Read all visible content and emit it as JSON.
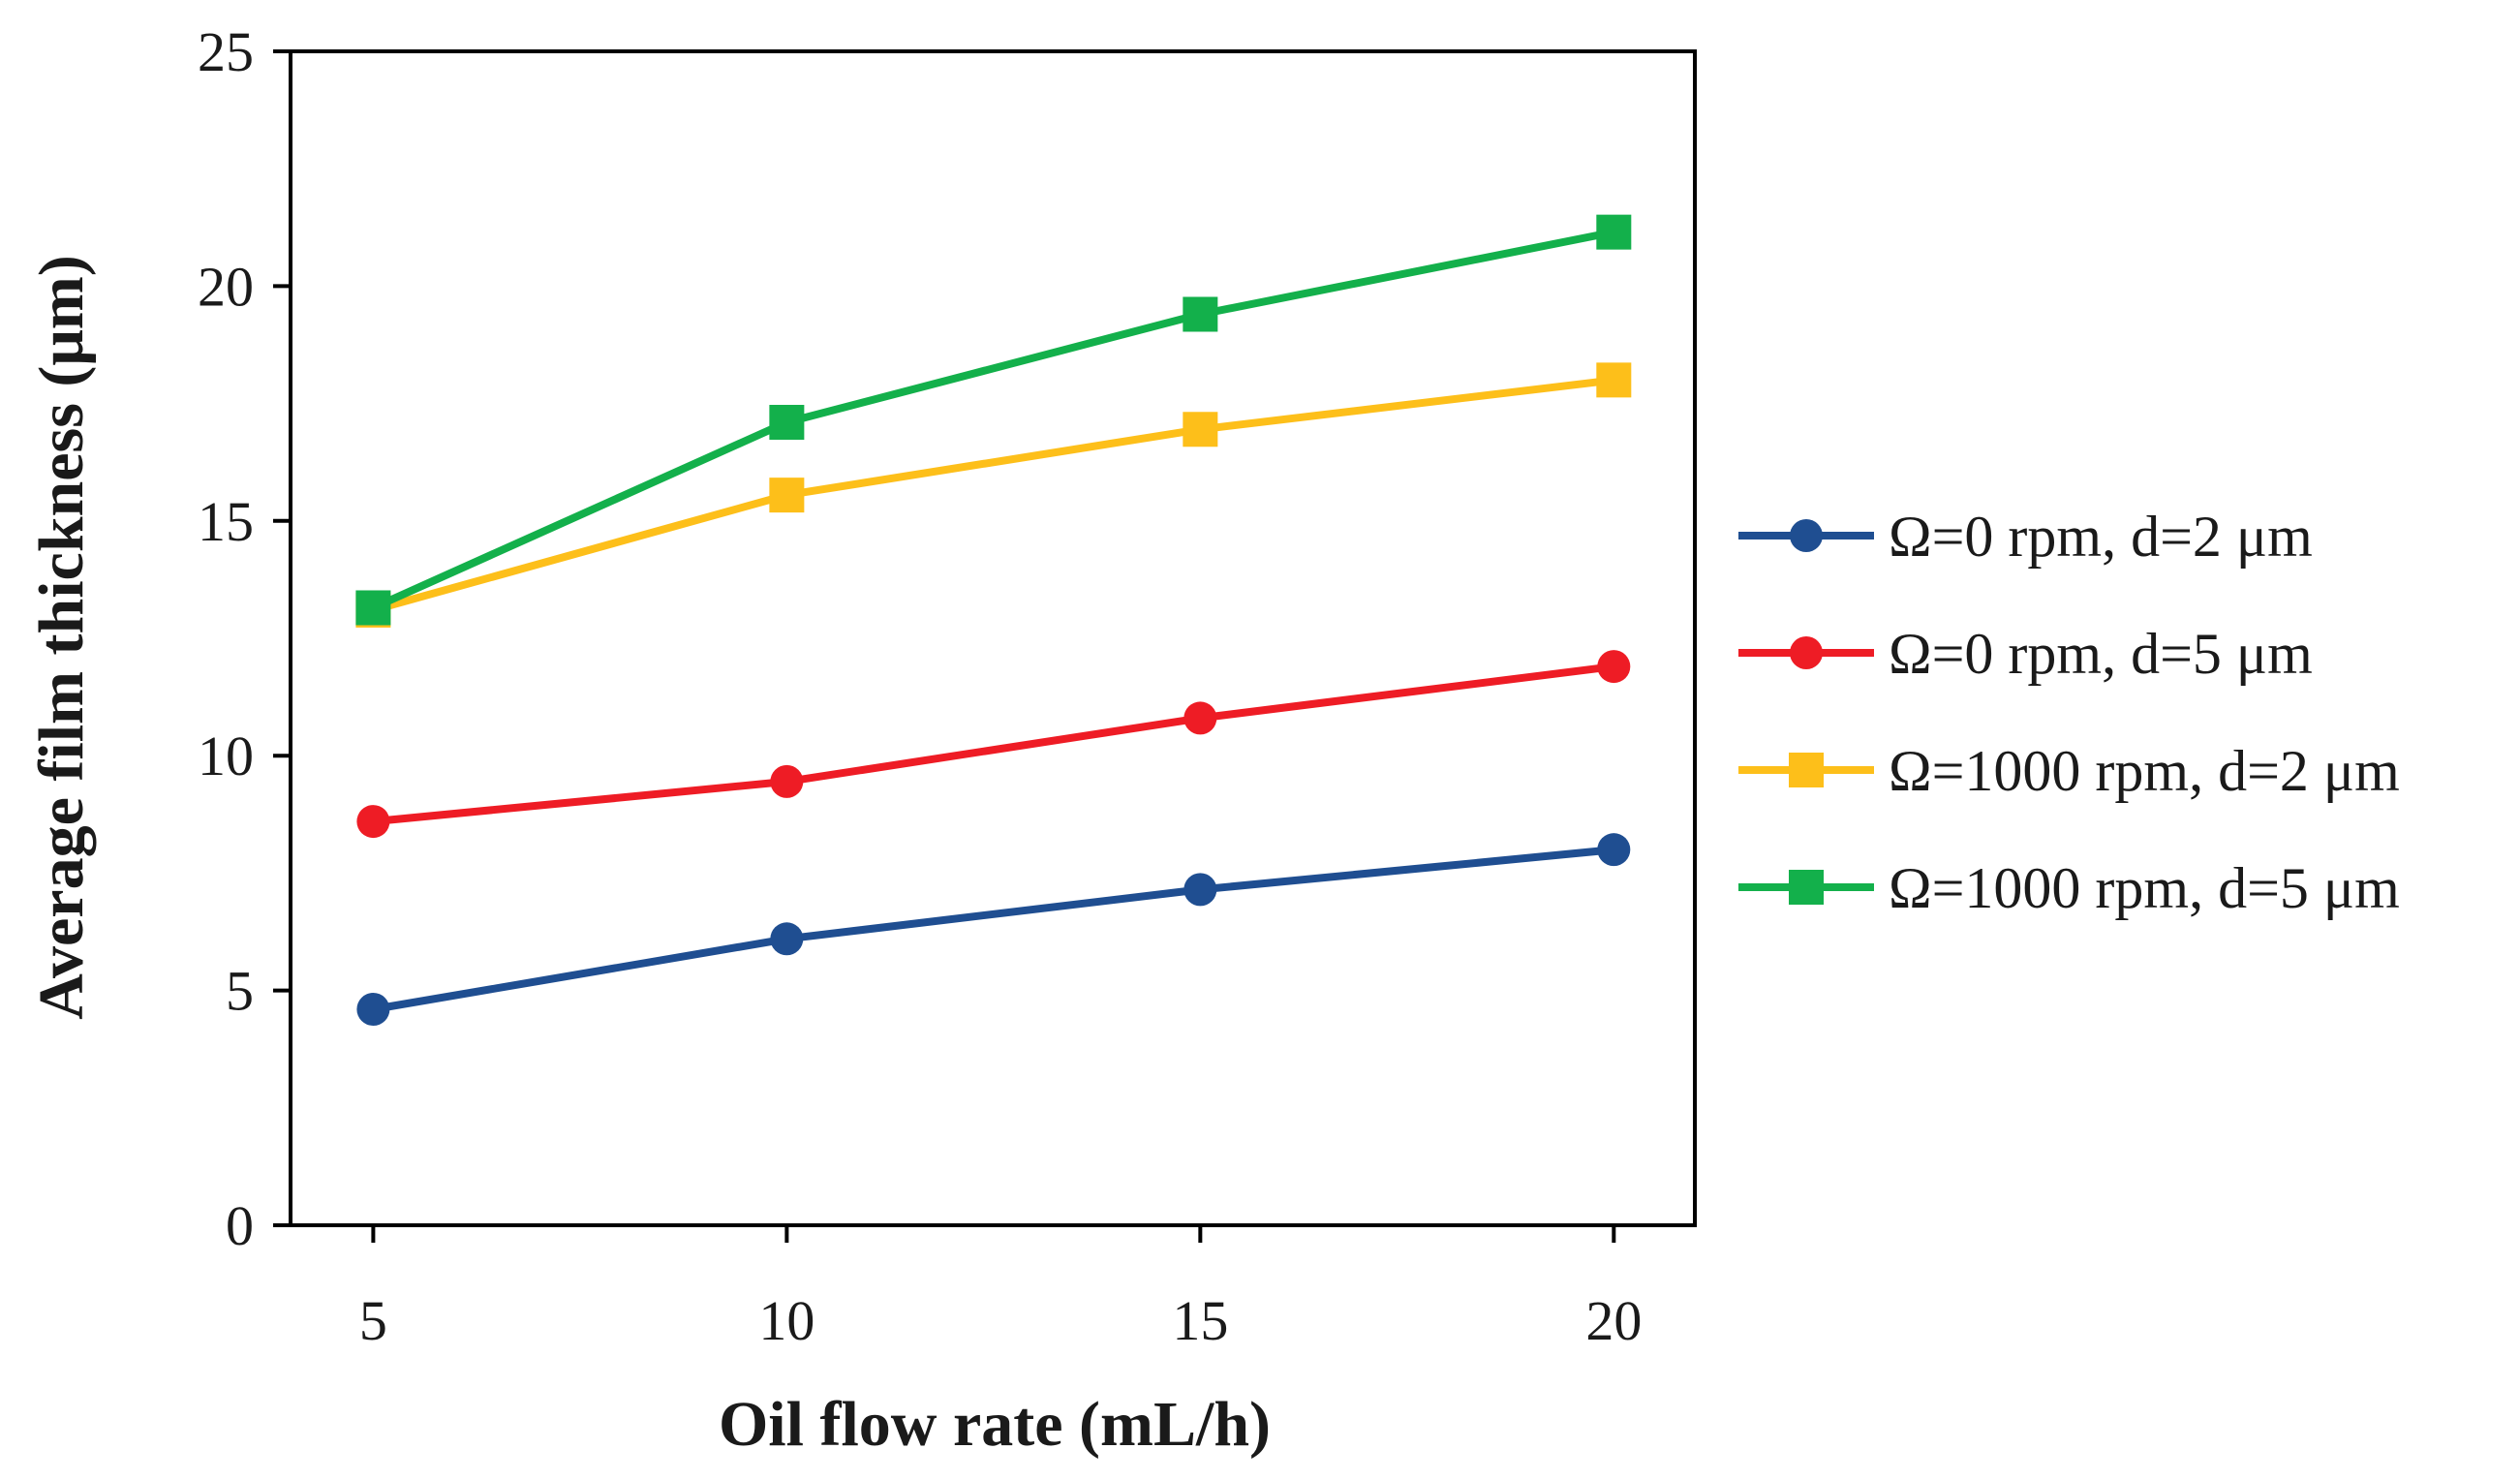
{
  "chart_data": {
    "type": "line",
    "title": "",
    "xlabel": "Oil flow rate (mL/h)",
    "ylabel": "Average film thickness (μm)",
    "x": [
      5,
      10,
      15,
      20
    ],
    "x_ticks": [
      "5",
      "10",
      "15",
      "20"
    ],
    "xlim": [
      4,
      20.98
    ],
    "ylim": [
      0,
      25
    ],
    "y_ticks": [
      "0",
      "5",
      "10",
      "15",
      "20",
      "25"
    ],
    "grid": false,
    "legend_position": "right",
    "series": [
      {
        "name": "Ω=0 rpm, d=2 μm",
        "color": "#1f4e91",
        "marker": "circle",
        "values": [
          4.6,
          6.1,
          7.15,
          8.0
        ]
      },
      {
        "name": "Ω=0 rpm, d=5 μm",
        "color": "#ee1c25",
        "marker": "circle",
        "values": [
          8.6,
          9.45,
          10.8,
          11.9
        ]
      },
      {
        "name": "Ω=1000 rpm, d=2 μm",
        "color": "#fdbf1a",
        "marker": "square",
        "values": [
          13.1,
          15.55,
          16.95,
          18.0
        ]
      },
      {
        "name": "Ω=1000 rpm, d=5 μm",
        "color": "#13b04b",
        "marker": "square",
        "values": [
          13.15,
          17.1,
          19.4,
          21.15
        ]
      }
    ]
  }
}
